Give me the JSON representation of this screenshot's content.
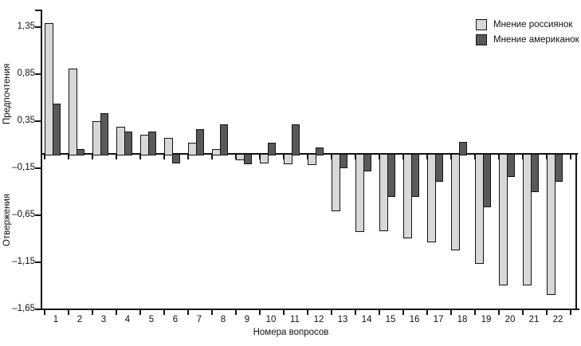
{
  "chart_data": {
    "type": "bar",
    "title": "",
    "xlabel": "Номера вопросов",
    "ylabel_top": "Предпочтения",
    "ylabel_bottom": "Отвержения",
    "categories": [
      "1",
      "2",
      "3",
      "4",
      "5",
      "6",
      "7",
      "8",
      "9",
      "10",
      "11",
      "12",
      "13",
      "14",
      "15",
      "16",
      "17",
      "18",
      "19",
      "20",
      "21",
      "22"
    ],
    "series": [
      {
        "name": "Мнение россиянок",
        "color": "#d8d8d8",
        "values": [
          1.39,
          0.91,
          0.35,
          0.29,
          0.2,
          0.17,
          0.12,
          0.05,
          -0.06,
          -0.09,
          -0.1,
          -0.11,
          -0.6,
          -0.82,
          -0.81,
          -0.89,
          -0.93,
          -1.02,
          -1.16,
          -1.39,
          -1.39,
          -1.49
        ]
      },
      {
        "name": "Мнение американок",
        "color": "#595959",
        "values": [
          0.53,
          0.05,
          0.43,
          0.24,
          0.24,
          -0.09,
          0.26,
          0.31,
          -0.1,
          0.12,
          0.31,
          0.07,
          -0.14,
          -0.18,
          -0.45,
          -0.45,
          -0.29,
          0.13,
          -0.56,
          -0.24,
          -0.4,
          -0.29
        ]
      }
    ],
    "yticks": [
      1.35,
      0.85,
      0.35,
      -0.15,
      -0.65,
      -1.15,
      -1.65
    ],
    "ytick_labels": [
      "1,35",
      "0,85",
      "0,35",
      "–0,15",
      "–0,65",
      "–1,15",
      "–1,65"
    ],
    "ylim": [
      -1.65,
      1.55
    ],
    "grid": false,
    "legend_position": "top-right",
    "axis_color": "#141414",
    "background": "#ffffff"
  }
}
